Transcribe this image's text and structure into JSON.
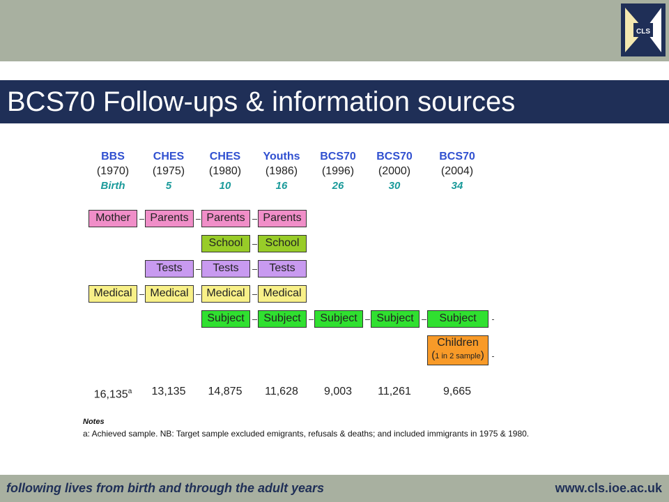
{
  "slide": {
    "title": "BCS70 Follow-ups & information sources",
    "logo_text": "CLS",
    "footer_tagline": "following lives from birth and through the adult years",
    "footer_url": "www.cls.ioe.ac.uk"
  },
  "colors": {
    "header_band": "#a8b0a0",
    "title_band": "#1f2f57",
    "parents": "#f08ec8",
    "school": "#98cc28",
    "tests": "#c89af0",
    "medical": "#f8f088",
    "subject": "#30e030",
    "children": "#f89a28"
  },
  "sweeps": [
    {
      "name": "BBS",
      "year": "(1970)",
      "age": "Birth",
      "count": "16,135",
      "count_sup": "a"
    },
    {
      "name": "CHES",
      "year": "(1975)",
      "age": "5",
      "count": "13,135",
      "count_sup": ""
    },
    {
      "name": "CHES",
      "year": "(1980)",
      "age": "10",
      "count": "14,875",
      "count_sup": ""
    },
    {
      "name": "Youths",
      "year": "(1986)",
      "age": "16",
      "count": "11,628",
      "count_sup": ""
    },
    {
      "name": "BCS70",
      "year": "(1996)",
      "age": "26",
      "count": "9,003",
      "count_sup": ""
    },
    {
      "name": "BCS70",
      "year": "(2000)",
      "age": "30",
      "count": "11,261",
      "count_sup": ""
    },
    {
      "name": "BCS70",
      "year": "(2004)",
      "age": "34",
      "count": "9,665",
      "count_sup": ""
    }
  ],
  "sources": {
    "parents": [
      "Mother",
      "Parents",
      "Parents",
      "Parents"
    ],
    "school": [
      "School",
      "School"
    ],
    "tests": [
      "Tests",
      "Tests",
      "Tests"
    ],
    "medical": [
      "Medical",
      "Medical",
      "Medical",
      "Medical"
    ],
    "subject": [
      "Subject",
      "Subject",
      "Subject",
      "Subject",
      "Subject"
    ],
    "children": {
      "label": "Children",
      "paren_open": "(",
      "sample_note": "1 in 2 sample",
      "paren_close": ")"
    }
  },
  "notes": {
    "heading": "Notes",
    "text": "a: Achieved sample.  NB: Target sample excluded emigrants, refusals & deaths; and included immigrants in 1975 & 1980."
  }
}
